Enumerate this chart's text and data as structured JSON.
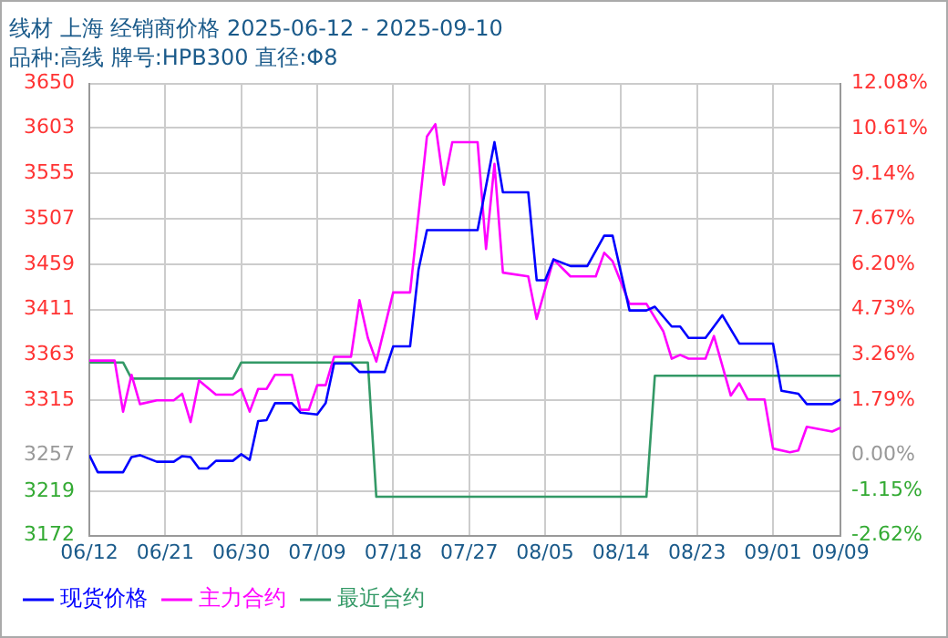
{
  "chart_data": {
    "type": "line",
    "title": "线材 上海 经销商价格 2025-06-12 - 2025-09-10",
    "subtitle": "品种:高线 牌号:HPB300 直径:Φ8",
    "xlim": [
      "2025-06-12",
      "2025-09-09"
    ],
    "xticks": [
      {
        "value": "2025-06-12",
        "label": "06/12"
      },
      {
        "value": "2025-06-21",
        "label": "06/21"
      },
      {
        "value": "2025-06-30",
        "label": "06/30"
      },
      {
        "value": "2025-07-09",
        "label": "07/09"
      },
      {
        "value": "2025-07-18",
        "label": "07/18"
      },
      {
        "value": "2025-07-27",
        "label": "07/27"
      },
      {
        "value": "2025-08-05",
        "label": "08/05"
      },
      {
        "value": "2025-08-14",
        "label": "08/14"
      },
      {
        "value": "2025-08-23",
        "label": "08/23"
      },
      {
        "value": "2025-09-01",
        "label": "09/01"
      },
      {
        "value": "2025-09-09",
        "label": "09/09"
      }
    ],
    "ylim": [
      3172,
      3650
    ],
    "yticks": [
      3172,
      3219,
      3257,
      3315,
      3363,
      3411,
      3459,
      3507,
      3555,
      3603,
      3650
    ],
    "y2lim": [
      -2.62,
      12.08
    ],
    "y2ticks": [
      {
        "value": -2.62,
        "label": "-2.62%"
      },
      {
        "value": -1.15,
        "label": "-1.15%"
      },
      {
        "value": 0,
        "label": "0.00%"
      },
      {
        "value": 1.79,
        "label": "1.79%"
      },
      {
        "value": 3.26,
        "label": "3.26%"
      },
      {
        "value": 4.73,
        "label": "4.73%"
      },
      {
        "value": 6.2,
        "label": "6.20%"
      },
      {
        "value": 7.67,
        "label": "7.67%"
      },
      {
        "value": 9.14,
        "label": "9.14%"
      },
      {
        "value": 10.61,
        "label": "10.61%"
      },
      {
        "value": 12.08,
        "label": "12.08%"
      }
    ],
    "grid": true,
    "legend": "bottom",
    "marker": "none",
    "line_style": "solid",
    "series": [
      {
        "name": "现货价格",
        "color": "#0000ff",
        "x": [
          "2025-06-12",
          "2025-06-13",
          "2025-06-16",
          "2025-06-17",
          "2025-06-18",
          "2025-06-20",
          "2025-06-22",
          "2025-06-23",
          "2025-06-24",
          "2025-06-25",
          "2025-06-26",
          "2025-06-27",
          "2025-06-29",
          "2025-06-30",
          "2025-07-01",
          "2025-07-02",
          "2025-07-03",
          "2025-07-04",
          "2025-07-06",
          "2025-07-07",
          "2025-07-09",
          "2025-07-10",
          "2025-07-11",
          "2025-07-13",
          "2025-07-14",
          "2025-07-17",
          "2025-07-18",
          "2025-07-20",
          "2025-07-21",
          "2025-07-22",
          "2025-07-28",
          "2025-07-30",
          "2025-07-31",
          "2025-08-03",
          "2025-08-04",
          "2025-08-05",
          "2025-08-06",
          "2025-08-08",
          "2025-08-10",
          "2025-08-12",
          "2025-08-13",
          "2025-08-15",
          "2025-08-17",
          "2025-08-18",
          "2025-08-20",
          "2025-08-21",
          "2025-08-22",
          "2025-08-24",
          "2025-08-26",
          "2025-08-28",
          "2025-09-01",
          "2025-09-02",
          "2025-09-04",
          "2025-09-05",
          "2025-09-08",
          "2025-09-09"
        ],
        "values": [
          3257,
          3239,
          3239,
          3255,
          3257,
          3250,
          3250,
          3256,
          3255,
          3243,
          3243,
          3251,
          3251,
          3258,
          3252,
          3293,
          3294,
          3312,
          3312,
          3302,
          3300,
          3312,
          3354,
          3354,
          3345,
          3345,
          3372,
          3372,
          3453,
          3495,
          3495,
          3588,
          3535,
          3535,
          3442,
          3442,
          3464,
          3457,
          3457,
          3489,
          3489,
          3410,
          3410,
          3414,
          3393,
          3393,
          3381,
          3381,
          3405,
          3375,
          3375,
          3325,
          3322,
          3311,
          3311,
          3316
        ]
      },
      {
        "name": "主力合约",
        "color": "#ff00ff",
        "x": [
          "2025-06-12",
          "2025-06-15",
          "2025-06-16",
          "2025-06-17",
          "2025-06-18",
          "2025-06-20",
          "2025-06-22",
          "2025-06-23",
          "2025-06-24",
          "2025-06-25",
          "2025-06-27",
          "2025-06-29",
          "2025-06-30",
          "2025-07-01",
          "2025-07-02",
          "2025-07-03",
          "2025-07-04",
          "2025-07-06",
          "2025-07-07",
          "2025-07-08",
          "2025-07-09",
          "2025-07-10",
          "2025-07-11",
          "2025-07-13",
          "2025-07-14",
          "2025-07-15",
          "2025-07-16",
          "2025-07-18",
          "2025-07-20",
          "2025-07-22",
          "2025-07-23",
          "2025-07-24",
          "2025-07-25",
          "2025-07-28",
          "2025-07-29",
          "2025-07-30",
          "2025-07-31",
          "2025-08-03",
          "2025-08-04",
          "2025-08-06",
          "2025-08-08",
          "2025-08-11",
          "2025-08-12",
          "2025-08-13",
          "2025-08-15",
          "2025-08-17",
          "2025-08-19",
          "2025-08-20",
          "2025-08-21",
          "2025-08-22",
          "2025-08-24",
          "2025-08-25",
          "2025-08-27",
          "2025-08-28",
          "2025-08-29",
          "2025-08-31",
          "2025-09-01",
          "2025-09-03",
          "2025-09-04",
          "2025-09-05",
          "2025-09-08",
          "2025-09-09"
        ],
        "values": [
          3357,
          3357,
          3303,
          3342,
          3311,
          3315,
          3315,
          3322,
          3292,
          3336,
          3321,
          3321,
          3327,
          3303,
          3327,
          3327,
          3342,
          3342,
          3305,
          3305,
          3331,
          3331,
          3361,
          3361,
          3421,
          3381,
          3356,
          3429,
          3429,
          3594,
          3607,
          3543,
          3588,
          3588,
          3475,
          3565,
          3450,
          3446,
          3401,
          3464,
          3446,
          3446,
          3471,
          3462,
          3417,
          3417,
          3388,
          3359,
          3363,
          3359,
          3359,
          3383,
          3320,
          3333,
          3316,
          3316,
          3264,
          3260,
          3262,
          3287,
          3282,
          3286
        ]
      },
      {
        "name": "最近合约",
        "color": "#339966",
        "x": [
          "2025-06-12",
          "2025-06-16",
          "2025-06-17",
          "2025-06-29",
          "2025-06-30",
          "2025-07-15",
          "2025-07-16",
          "2025-08-17",
          "2025-08-18",
          "2025-09-09"
        ],
        "values": [
          3355,
          3355,
          3338,
          3338,
          3355,
          3355,
          3213,
          3213,
          3341,
          3341
        ]
      }
    ]
  }
}
